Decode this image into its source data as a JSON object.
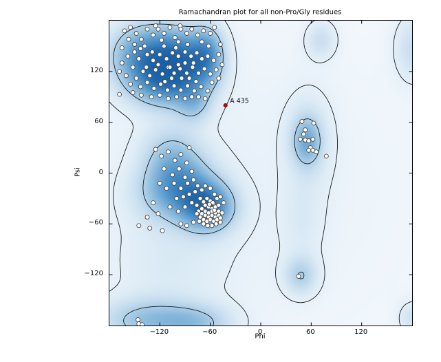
{
  "chart_data": {
    "type": "scatter",
    "subtype": "ramachandran-density",
    "title": "Ramachandran plot for all non-Pro/Gly residues",
    "x_axis": {
      "label": "Phi",
      "min": -180,
      "max": 180,
      "tick_values": [
        -120,
        -60,
        0,
        60,
        120
      ],
      "tick_labels": [
        "−120",
        "−60",
        "0",
        "60",
        "120"
      ]
    },
    "y_axis": {
      "label": "Psi",
      "min": -180,
      "max": 180,
      "tick_values": [
        120,
        60,
        0,
        -60,
        -120
      ],
      "tick_labels": [
        "120",
        "60",
        "0",
        "−60",
        "−120"
      ]
    },
    "grid": false,
    "legend": null,
    "frame_color": "#000000",
    "contour_color": "#1b1b1b",
    "contour_levels": [
      0.073,
      0.3
    ],
    "density_max": 1.65,
    "colormap_stops": [
      [
        0.0,
        "#f3f8fc"
      ],
      [
        0.06,
        "#e8f1f9"
      ],
      [
        0.12,
        "#dcebf5"
      ],
      [
        0.22,
        "#c6ddef"
      ],
      [
        0.32,
        "#a9cde6"
      ],
      [
        0.45,
        "#82b4da"
      ],
      [
        0.58,
        "#5b9bce"
      ],
      [
        0.72,
        "#3981bf"
      ],
      [
        0.85,
        "#2169ae"
      ],
      [
        1.0,
        "#175fa8"
      ]
    ],
    "density_model": [
      [
        -85,
        -30,
        110,
        140,
        0.09
      ],
      [
        100,
        -20,
        130,
        130,
        0.04
      ],
      [
        -140,
        140,
        28,
        26,
        0.95
      ],
      [
        -95,
        135,
        25,
        26,
        1.0
      ],
      [
        -63,
        140,
        14,
        24,
        0.7
      ],
      [
        -115,
        105,
        30,
        20,
        0.7
      ],
      [
        -80,
        82,
        14,
        16,
        0.4
      ],
      [
        -63,
        -40,
        22,
        20,
        1.05
      ],
      [
        -90,
        -15,
        26,
        26,
        0.6
      ],
      [
        -118,
        -25,
        28,
        24,
        0.35
      ],
      [
        -108,
        20,
        24,
        26,
        0.42
      ],
      [
        55,
        38,
        12,
        20,
        0.58
      ],
      [
        58,
        40,
        20,
        42,
        0.22
      ],
      [
        50,
        -60,
        18,
        35,
        0.13
      ],
      [
        48,
        -122,
        14,
        16,
        0.42
      ],
      [
        72,
        158,
        13,
        16,
        0.3
      ],
      [
        182,
        148,
        16,
        28,
        0.32
      ],
      [
        182,
        -172,
        12,
        14,
        0.28
      ],
      [
        -135,
        -175,
        40,
        18,
        0.55
      ],
      [
        -75,
        -178,
        30,
        15,
        0.42
      ],
      [
        -110,
        -110,
        45,
        40,
        0.13
      ]
    ],
    "marker": {
      "radius": 3.0,
      "fill": "#ffffff",
      "edge": "#4a4a4a",
      "edge_width": 0.9
    },
    "highlight": {
      "label": "A 435",
      "phi": -42,
      "psi": 80,
      "color": "#d40000",
      "edge": "#7a0000",
      "radius": 2.6,
      "label_color": "#111111",
      "label_size": 9.5
    },
    "points": [
      [
        -162,
        168
      ],
      [
        -155,
        172
      ],
      [
        -148,
        165
      ],
      [
        -157,
        158
      ],
      [
        -150,
        152
      ],
      [
        -165,
        148
      ],
      [
        -142,
        158
      ],
      [
        -135,
        170
      ],
      [
        -128,
        163
      ],
      [
        -138,
        150
      ],
      [
        -122,
        170
      ],
      [
        -115,
        165
      ],
      [
        -108,
        172
      ],
      [
        -118,
        157
      ],
      [
        -102,
        160
      ],
      [
        -95,
        170
      ],
      [
        -88,
        165
      ],
      [
        -98,
        155
      ],
      [
        -82,
        170
      ],
      [
        -75,
        163
      ],
      [
        -68,
        168
      ],
      [
        -60,
        165
      ],
      [
        -55,
        172
      ],
      [
        -70,
        155
      ],
      [
        -62,
        150
      ],
      [
        -135,
        140
      ],
      [
        -145,
        135
      ],
      [
        -158,
        138
      ],
      [
        -165,
        130
      ],
      [
        -152,
        125
      ],
      [
        -128,
        133
      ],
      [
        -120,
        140
      ],
      [
        -112,
        135
      ],
      [
        -105,
        142
      ],
      [
        -98,
        138
      ],
      [
        -90,
        143
      ],
      [
        -83,
        138
      ],
      [
        -76,
        142
      ],
      [
        -70,
        135
      ],
      [
        -63,
        138
      ],
      [
        -56,
        133
      ],
      [
        -50,
        140
      ],
      [
        -140,
        120
      ],
      [
        -148,
        112
      ],
      [
        -132,
        115
      ],
      [
        -125,
        122
      ],
      [
        -117,
        117
      ],
      [
        -110,
        125
      ],
      [
        -103,
        118
      ],
      [
        -96,
        123
      ],
      [
        -88,
        118
      ],
      [
        -81,
        125
      ],
      [
        -74,
        118
      ],
      [
        -67,
        123
      ],
      [
        -60,
        117
      ],
      [
        -53,
        122
      ],
      [
        -160,
        115
      ],
      [
        -168,
        120
      ],
      [
        -155,
        105
      ],
      [
        -143,
        102
      ],
      [
        -135,
        107
      ],
      [
        -127,
        100
      ],
      [
        -119,
        105
      ],
      [
        -111,
        98
      ],
      [
        -103,
        103
      ],
      [
        -95,
        98
      ],
      [
        -87,
        103
      ],
      [
        -79,
        97
      ],
      [
        -71,
        102
      ],
      [
        -63,
        97
      ],
      [
        -120,
        92
      ],
      [
        -130,
        90
      ],
      [
        -110,
        88
      ],
      [
        -100,
        90
      ],
      [
        -90,
        88
      ],
      [
        -142,
        92
      ],
      [
        -152,
        95
      ],
      [
        -82,
        90
      ],
      [
        -74,
        90
      ],
      [
        -66,
        88
      ],
      [
        -58,
        107
      ],
      [
        -50,
        112
      ],
      [
        -46,
        128
      ],
      [
        -48,
        152
      ],
      [
        -98,
        128
      ],
      [
        -106,
        112
      ],
      [
        -114,
        108
      ],
      [
        -90,
        130
      ],
      [
        -85,
        112
      ],
      [
        -77,
        108
      ],
      [
        -150,
        143
      ],
      [
        -143,
        147
      ],
      [
        -136,
        125
      ],
      [
        -129,
        143
      ],
      [
        -122,
        128
      ],
      [
        -115,
        150
      ],
      [
        -108,
        125
      ],
      [
        -101,
        148
      ],
      [
        -94,
        112
      ],
      [
        -87,
        152
      ],
      [
        -80,
        130
      ],
      [
        -125,
        174
      ],
      [
        -96,
        174
      ],
      [
        -168,
        93
      ],
      [
        -72,
        -30
      ],
      [
        -68,
        -34
      ],
      [
        -64,
        -30
      ],
      [
        -60,
        -33
      ],
      [
        -56,
        -36
      ],
      [
        -52,
        -30
      ],
      [
        -66,
        -38
      ],
      [
        -62,
        -40
      ],
      [
        -58,
        -42
      ],
      [
        -54,
        -40
      ],
      [
        -50,
        -38
      ],
      [
        -70,
        -42
      ],
      [
        -66,
        -45
      ],
      [
        -62,
        -47
      ],
      [
        -58,
        -45
      ],
      [
        -54,
        -47
      ],
      [
        -50,
        -45
      ],
      [
        -74,
        -45
      ],
      [
        -70,
        -48
      ],
      [
        -66,
        -50
      ],
      [
        -62,
        -52
      ],
      [
        -58,
        -50
      ],
      [
        -54,
        -52
      ],
      [
        -50,
        -50
      ],
      [
        -46,
        -47
      ],
      [
        -68,
        -55
      ],
      [
        -64,
        -57
      ],
      [
        -60,
        -55
      ],
      [
        -56,
        -57
      ],
      [
        -52,
        -55
      ],
      [
        -48,
        -53
      ],
      [
        -72,
        -52
      ],
      [
        -76,
        -48
      ],
      [
        -63,
        -62
      ],
      [
        -58,
        -62
      ],
      [
        -53,
        -60
      ],
      [
        -48,
        -58
      ],
      [
        -68,
        -60
      ],
      [
        -73,
        -57
      ],
      [
        -57,
        -35
      ],
      [
        -61,
        -37
      ],
      [
        -55,
        -44
      ],
      [
        -125,
        28
      ],
      [
        -118,
        20
      ],
      [
        -110,
        25
      ],
      [
        -102,
        15
      ],
      [
        -95,
        22
      ],
      [
        -88,
        12
      ],
      [
        -115,
        5
      ],
      [
        -105,
        -2
      ],
      [
        -97,
        5
      ],
      [
        -90,
        -5
      ],
      [
        -82,
        2
      ],
      [
        -120,
        -12
      ],
      [
        -112,
        -18
      ],
      [
        -103,
        -12
      ],
      [
        -95,
        -18
      ],
      [
        -87,
        -12
      ],
      [
        -80,
        -8
      ],
      [
        -75,
        -15
      ],
      [
        -128,
        -35
      ],
      [
        -135,
        -52
      ],
      [
        -122,
        -48
      ],
      [
        -100,
        -30
      ],
      [
        -92,
        -28
      ],
      [
        -85,
        -25
      ],
      [
        -78,
        -22
      ],
      [
        -108,
        -40
      ],
      [
        -98,
        -45
      ],
      [
        -90,
        -40
      ],
      [
        -82,
        -35
      ],
      [
        -76,
        -38
      ],
      [
        -145,
        -62
      ],
      [
        -132,
        -65
      ],
      [
        -95,
        -60
      ],
      [
        -88,
        -62
      ],
      [
        -80,
        -58
      ],
      [
        -117,
        -68
      ],
      [
        -70,
        -20
      ],
      [
        -66,
        -15
      ],
      [
        -60,
        -18
      ],
      [
        -55,
        -25
      ],
      [
        -48,
        -28
      ],
      [
        -44,
        -35
      ],
      [
        -85,
        30
      ],
      [
        49,
        61
      ],
      [
        63,
        59
      ],
      [
        53,
        51
      ],
      [
        51,
        46
      ],
      [
        47,
        40
      ],
      [
        53,
        39
      ],
      [
        57,
        38
      ],
      [
        62,
        40
      ],
      [
        59,
        30
      ],
      [
        57,
        27
      ],
      [
        62,
        27
      ],
      [
        66,
        25
      ],
      [
        78,
        20
      ],
      [
        45,
        -122
      ],
      [
        -146,
        -173
      ],
      [
        -145,
        -178
      ],
      [
        -141,
        -179
      ]
    ],
    "tick_length": 4.5
  }
}
